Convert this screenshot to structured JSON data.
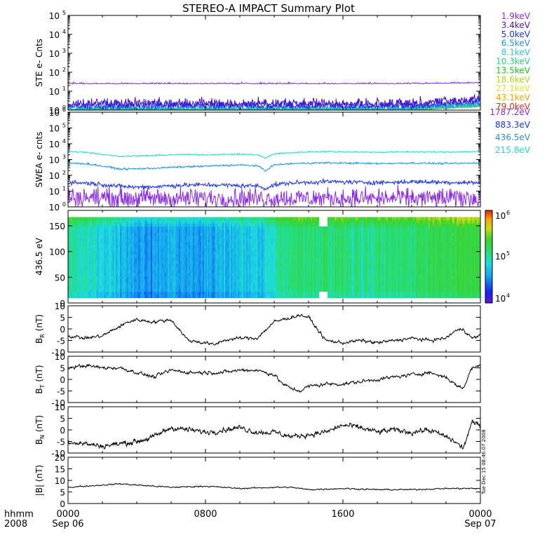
{
  "title": "STEREO-A IMPACT Summary Plot",
  "time_axis": {
    "row1_label": "hhmm",
    "row2_label": "2008",
    "ticks": [
      {
        "hour": 0,
        "top": "0000",
        "bottom": "Sep 06"
      },
      {
        "hour": 8,
        "top": "0800",
        "bottom": ""
      },
      {
        "hour": 16,
        "top": "1600",
        "bottom": ""
      },
      {
        "hour": 24,
        "top": "0000",
        "bottom": "Sep 07"
      }
    ],
    "range_hours": [
      0,
      24
    ]
  },
  "side_stamp": "Tue Dec 15 08:46:07 2008",
  "ste_legend": [
    {
      "label": "1.9keV",
      "color": "#8a2be2"
    },
    {
      "label": "3.4keV",
      "color": "#4b10c8"
    },
    {
      "label": "5.0keV",
      "color": "#1a32e6"
    },
    {
      "label": "6.5keV",
      "color": "#1e8fe0"
    },
    {
      "label": "8.1keV",
      "color": "#2ac8d8"
    },
    {
      "label": "10.3keV",
      "color": "#20d07a"
    },
    {
      "label": "13.5keV",
      "color": "#18c818"
    },
    {
      "label": "18.6keV",
      "color": "#a8d818"
    },
    {
      "label": "27.1keV",
      "color": "#e8e020"
    },
    {
      "label": "43.1keV",
      "color": "#f0a010"
    },
    {
      "label": "79.0keV",
      "color": "#e02818"
    }
  ],
  "swea_legend": [
    {
      "label": "1787.2eV",
      "color": "#8a2be2"
    },
    {
      "label": "883.3eV",
      "color": "#1a32e6"
    },
    {
      "label": "436.5eV",
      "color": "#1e90e0"
    },
    {
      "label": "215.8eV",
      "color": "#22d8c8"
    }
  ],
  "colorbar": {
    "labels": [
      {
        "value": "10",
        "exp": "6",
        "pos": 1.0
      },
      {
        "value": "10",
        "exp": "5",
        "pos": 0.5
      },
      {
        "value": "10",
        "exp": "4",
        "pos": 0.0
      }
    ]
  },
  "chart_data": [
    {
      "id": "ste",
      "type": "line",
      "ylabel": "STE e- Cnts",
      "yscale": "log",
      "ylim": [
        1,
        100000
      ],
      "yticks": [
        {
          "base": "10",
          "exp": "0"
        },
        {
          "base": "10",
          "exp": "1"
        },
        {
          "base": "10",
          "exp": "2"
        },
        {
          "base": "10",
          "exp": "3"
        },
        {
          "base": "10",
          "exp": "4"
        },
        {
          "base": "10",
          "exp": "5"
        }
      ],
      "series": [
        {
          "name": "1.9keV",
          "level": 25,
          "noise": 0.1,
          "color": "#8a2be2"
        },
        {
          "name": "3.4keV",
          "level": 2.0,
          "noise": 0.55,
          "color": "#4b10c8"
        },
        {
          "name": "5.0keV",
          "level": 1.6,
          "noise": 0.55,
          "color": "#1a32e6"
        },
        {
          "name": "6.5keV",
          "level": 1.3,
          "noise": 0.45,
          "color": "#1e8fe0"
        },
        {
          "name": "8.1keV",
          "level": 1.1,
          "noise": 0.35,
          "color": "#2ac8d8"
        },
        {
          "name": "10.3keV",
          "level": 1.05,
          "noise": 0.25,
          "color": "#20d07a"
        },
        {
          "name": "13.5keV",
          "level": 1.02,
          "noise": 0.2,
          "color": "#18c818"
        },
        {
          "name": "18.6keV",
          "level": 1.0,
          "noise": 0.15,
          "color": "#a8d818"
        },
        {
          "name": "27.1keV",
          "level": 1.0,
          "noise": 0.1,
          "color": "#e8e020"
        },
        {
          "name": "43.1keV",
          "level": 1.0,
          "noise": 0.08,
          "color": "#f0a010"
        },
        {
          "name": "79.0keV",
          "level": 1.0,
          "noise": 0.05,
          "color": "#e02818"
        }
      ]
    },
    {
      "id": "swea",
      "type": "line",
      "ylabel": "SWEA e- cnts",
      "yscale": "log",
      "ylim": [
        1,
        1000000
      ],
      "yticks": [
        {
          "base": "10",
          "exp": "0"
        },
        {
          "base": "10",
          "exp": "1"
        },
        {
          "base": "10",
          "exp": "2"
        },
        {
          "base": "10",
          "exp": "3"
        },
        {
          "base": "10",
          "exp": "4"
        },
        {
          "base": "10",
          "exp": "5"
        },
        {
          "base": "10",
          "exp": "6"
        }
      ],
      "x_hours": [
        0,
        1,
        2,
        3,
        4,
        5,
        6,
        7,
        8,
        9,
        10,
        11,
        11.5,
        12,
        13,
        14,
        15,
        16,
        17,
        18,
        19,
        20,
        21,
        22,
        23,
        24
      ],
      "series": [
        {
          "name": "215.8eV",
          "color": "#22d8c8",
          "noise": 0.04,
          "values": [
            3200,
            3000,
            2100,
            1600,
            1700,
            1800,
            2000,
            2100,
            2000,
            2100,
            2200,
            2000,
            1200,
            2300,
            2700,
            3100,
            3200,
            3100,
            3000,
            2900,
            3000,
            3100,
            3000,
            3000,
            3100,
            3200
          ]
        },
        {
          "name": "436.5eV",
          "color": "#1e90e0",
          "noise": 0.05,
          "values": [
            600,
            550,
            380,
            250,
            260,
            280,
            320,
            350,
            380,
            420,
            450,
            400,
            180,
            450,
            550,
            600,
            620,
            600,
            580,
            560,
            580,
            600,
            580,
            560,
            580,
            600
          ]
        },
        {
          "name": "883.3eV",
          "color": "#1a32e6",
          "noise": 0.12,
          "values": [
            35,
            33,
            26,
            20,
            18,
            19,
            22,
            24,
            25,
            24,
            22,
            22,
            14,
            25,
            33,
            36,
            40,
            38,
            36,
            35,
            36,
            40,
            38,
            36,
            35,
            34
          ]
        },
        {
          "name": "1787.2eV",
          "color": "#8a2be2",
          "noise": 0.55,
          "values": [
            4,
            4,
            4,
            3.5,
            3.5,
            3.5,
            3.5,
            3.5,
            3.5,
            3.5,
            3.5,
            3.5,
            3.5,
            3.5,
            3.5,
            3.5,
            3.5,
            3.5,
            3.5,
            3.5,
            3.5,
            3.5,
            3.5,
            3.5,
            3.5,
            3.5
          ]
        }
      ]
    },
    {
      "id": "spectrogram",
      "type": "heatmap",
      "ylabel": "436.5 eV",
      "ylim": [
        0,
        180
      ],
      "yticks": [
        "0",
        "50",
        "100",
        "150"
      ],
      "y_range_data": [
        10,
        167
      ],
      "colorscale": "rainbow-log",
      "zlim": [
        10000,
        1000000
      ],
      "x_hours": [
        0,
        2,
        3,
        4,
        6,
        8,
        10,
        11.5,
        12,
        13,
        14,
        16,
        18,
        20,
        22,
        24
      ],
      "log_level": [
        5.0,
        4.85,
        4.7,
        4.55,
        4.6,
        4.6,
        4.7,
        4.75,
        4.95,
        5.05,
        5.1,
        5.05,
        5.05,
        5.1,
        5.2,
        5.3
      ],
      "gap_hours": [
        14.6,
        15.1
      ]
    },
    {
      "id": "br",
      "type": "line",
      "ylabel": "B",
      "ysub": "R",
      "yunit": "(nT)",
      "ylim": [
        -10,
        10
      ],
      "yticks": [
        "-10",
        "-5",
        "0",
        "5",
        "10"
      ],
      "x_hours": [
        0,
        1,
        2,
        3,
        3.5,
        4,
        5,
        6,
        7,
        8,
        8.5,
        9,
        10,
        11,
        12,
        12.5,
        13,
        13.5,
        14,
        15,
        16,
        17,
        18,
        19,
        20,
        21,
        22,
        22.5,
        23,
        23.5,
        24
      ],
      "values": [
        -3,
        -4,
        -3,
        1,
        3,
        4,
        3,
        4,
        -5,
        -6,
        -7,
        -5,
        -4,
        -4,
        3,
        4,
        5,
        6,
        5,
        -5,
        -6,
        -5,
        -6,
        -5,
        -4,
        -5,
        -4,
        -1,
        0,
        -4,
        -3
      ],
      "noise": 1.2
    },
    {
      "id": "bt",
      "type": "line",
      "ylabel": "B",
      "ysub": "T",
      "yunit": "(nT)",
      "ylim": [
        -10,
        10
      ],
      "yticks": [
        "-10",
        "-5",
        "0",
        "5",
        "10"
      ],
      "x_hours": [
        0,
        1,
        2,
        3,
        4,
        5,
        6,
        7,
        8,
        9,
        10,
        11,
        12,
        12.5,
        13,
        13.5,
        14,
        15,
        16,
        17,
        18,
        19,
        20,
        21,
        22,
        22.5,
        23,
        23.5,
        24
      ],
      "values": [
        5,
        6,
        5,
        5,
        3,
        1,
        4,
        3,
        3,
        3,
        4,
        4,
        2,
        -2,
        -4,
        -5,
        -3,
        -2,
        -2,
        -1,
        0,
        1,
        2,
        3,
        1,
        -2,
        -4,
        5,
        6
      ],
      "noise": 1.3
    },
    {
      "id": "bn",
      "type": "line",
      "ylabel": "B",
      "ysub": "N",
      "yunit": "(nT)",
      "ylim": [
        -10,
        10
      ],
      "yticks": [
        "-10",
        "-5",
        "0",
        "5",
        "10"
      ],
      "x_hours": [
        0,
        1,
        2,
        3,
        4,
        5,
        6,
        7,
        8,
        9,
        10,
        11,
        12,
        13,
        14,
        15,
        16,
        17,
        18,
        19,
        20,
        21,
        22,
        22.5,
        23,
        23.5,
        24
      ],
      "values": [
        -5,
        -6,
        -7,
        -6,
        -5,
        -3,
        1,
        0,
        -1,
        0,
        1,
        -1,
        -1,
        -3,
        -2,
        -1,
        2,
        1,
        -1,
        0,
        -1,
        0,
        -3,
        -5,
        -8,
        3,
        2
      ],
      "noise": 2.0
    },
    {
      "id": "bmag",
      "type": "line",
      "ylabel": "|B| (nT)",
      "ylim": [
        0,
        20
      ],
      "yticks": [
        "0",
        "5",
        "10",
        "15",
        "20"
      ],
      "x_hours": [
        0,
        2,
        3,
        4,
        6,
        8,
        10,
        12,
        13,
        14,
        16,
        18,
        20,
        22,
        24
      ],
      "values": [
        7,
        8,
        8.5,
        8,
        7,
        7.5,
        6.5,
        7,
        7,
        6,
        6.5,
        6,
        6,
        6.5,
        6.5
      ],
      "noise": 0.5
    }
  ]
}
